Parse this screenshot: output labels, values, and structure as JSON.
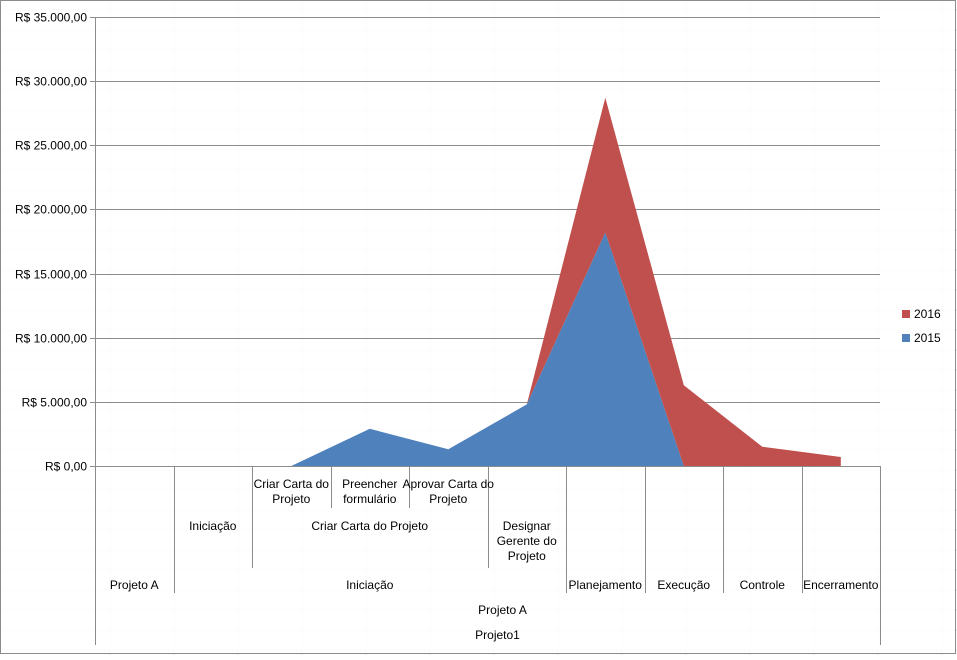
{
  "chart_data": {
    "type": "area",
    "stacked": true,
    "ylim": [
      0,
      35000
    ],
    "y_ticks": [
      {
        "value": 0,
        "label": "R$ 0,00"
      },
      {
        "value": 5000,
        "label": "R$ 5.000,00"
      },
      {
        "value": 10000,
        "label": "R$ 10.000,00"
      },
      {
        "value": 15000,
        "label": "R$ 15.000,00"
      },
      {
        "value": 20000,
        "label": "R$ 20.000,00"
      },
      {
        "value": 25000,
        "label": "R$ 25.000,00"
      },
      {
        "value": 30000,
        "label": "R$ 30.000,00"
      },
      {
        "value": 35000,
        "label": "R$ 35.000,00"
      }
    ],
    "grid": true,
    "legend_position": "right",
    "categories": [
      [
        "Projeto A",
        "",
        "",
        "Projeto1"
      ],
      [
        "Iniciação",
        "",
        "",
        ""
      ],
      [
        "Criar Carta do Projeto",
        "Criar Carta do Projeto",
        "Iniciação",
        "Projeto A"
      ],
      [
        "Preencher formulário",
        "Criar Carta do Projeto",
        "Iniciação",
        "Projeto A"
      ],
      [
        "Aprovar Carta do Projeto",
        "Criar Carta do Projeto",
        "Iniciação",
        "Projeto A"
      ],
      [
        "Designar Gerente do Projeto",
        "",
        "Iniciação",
        "Projeto A"
      ],
      [
        "Planejamento",
        "",
        "",
        "Projeto A"
      ],
      [
        "Execução",
        "",
        "",
        "Projeto A"
      ],
      [
        "Controle",
        "",
        "",
        "Projeto A"
      ],
      [
        "Encerramento",
        "",
        "",
        "Projeto A"
      ]
    ],
    "axis_labels": {
      "level1": [
        "Criar Carta do Projeto",
        "Preencher formulário",
        "Aprovar Carta do Projeto"
      ],
      "level2": [
        "Iniciação",
        "Criar Carta do Projeto",
        "Designar Gerente do Projeto"
      ],
      "level3": [
        "Projeto A",
        "Iniciação",
        "Planejamento",
        "Execução",
        "Controle",
        "Encerramento"
      ],
      "level4": [
        "Projeto A"
      ],
      "level5": [
        "Projeto1"
      ]
    },
    "series": [
      {
        "name": "2015",
        "color": "#4f81bd",
        "values": [
          0,
          0,
          0,
          2900,
          1300,
          4800,
          18200,
          0,
          0,
          0
        ]
      },
      {
        "name": "2016",
        "color": "#c0504d",
        "values": [
          0,
          0,
          0,
          0,
          0,
          0,
          10500,
          6300,
          1500,
          700
        ]
      }
    ]
  }
}
